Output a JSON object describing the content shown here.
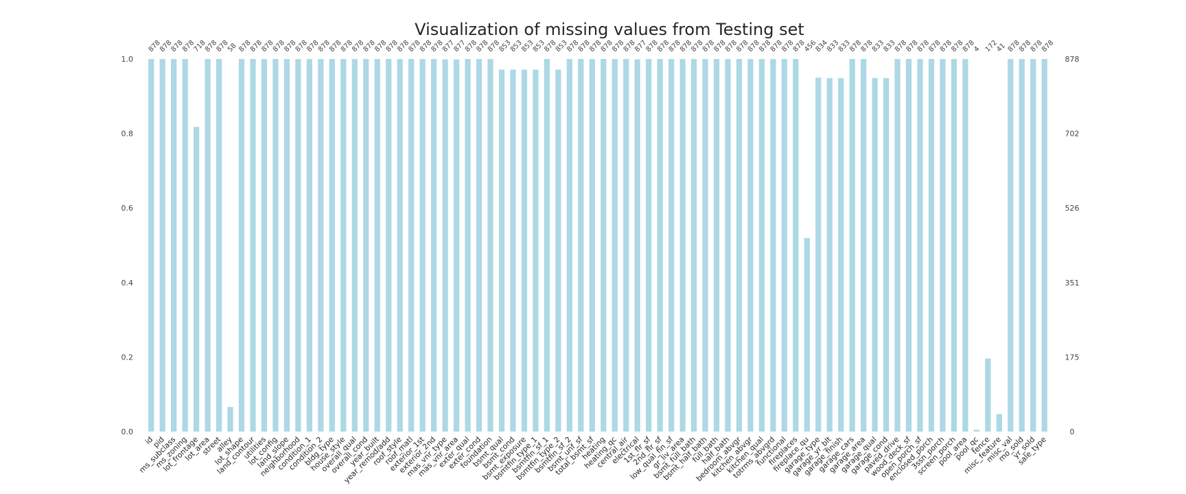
{
  "chart_data": {
    "type": "bar",
    "title": "Visualization of missing values from Testing set",
    "xlabel": "",
    "ylabel": "",
    "ylim": [
      0,
      1
    ],
    "y_ticks": [
      "0.0",
      "0.2",
      "0.4",
      "0.6",
      "0.8",
      "1.0"
    ],
    "y_tick_values": [
      0,
      0.2,
      0.4,
      0.6,
      0.8,
      1.0
    ],
    "y2_ticks": [
      "0",
      "175",
      "351",
      "526",
      "702",
      "878"
    ],
    "total_rows": 878,
    "bar_color": "#add8e6",
    "grid": true,
    "categories": [
      "id",
      "pid",
      "ms_subclass",
      "ms_zoning",
      "lot_frontage",
      "lot_area",
      "street",
      "alley",
      "lot_shape",
      "land_contour",
      "utilities",
      "lot_config",
      "land_slope",
      "neighborhood",
      "condition_1",
      "condition_2",
      "bldg_type",
      "house_style",
      "overall_qual",
      "overall_cond",
      "year_built",
      "year_remod/add",
      "roof_style",
      "roof_matl",
      "exterior_1st",
      "exterior_2nd",
      "mas_vnr_type",
      "mas_vnr_area",
      "exter_qual",
      "exter_cond",
      "foundation",
      "bsmt_qual",
      "bsmt_cond",
      "bsmt_exposure",
      "bsmtfin_type_1",
      "bsmtfin_sf_1",
      "bsmtfin_type_2",
      "bsmtfin_sf_2",
      "bsmt_unf_sf",
      "total_bsmt_sf",
      "heating",
      "heating_qc",
      "central_air",
      "electrical",
      "1st_flr_sf",
      "2nd_flr_sf",
      "low_qual_fin_sf",
      "gr_liv_area",
      "bsmt_full_bath",
      "bsmt_half_bath",
      "full_bath",
      "half_bath",
      "bedroom_abvgr",
      "kitchen_abvgr",
      "kitchen_qual",
      "totrms_abvgrd",
      "functional",
      "fireplaces",
      "fireplace_qu",
      "garage_type",
      "garage_yr_blt",
      "garage_finish",
      "garage_cars",
      "garage_area",
      "garage_qual",
      "garage_cond",
      "paved_drive",
      "wood_deck_sf",
      "open_porch_sf",
      "enclosed_porch",
      "3ssn_porch",
      "screen_porch",
      "pool_area",
      "pool_qc",
      "fence",
      "misc_feature",
      "misc_val",
      "mo_sold",
      "yr_sold",
      "sale_type"
    ],
    "values": [
      878,
      878,
      878,
      878,
      718,
      878,
      878,
      58,
      878,
      878,
      878,
      878,
      878,
      878,
      878,
      878,
      878,
      878,
      878,
      878,
      878,
      878,
      878,
      878,
      878,
      878,
      877,
      877,
      878,
      878,
      878,
      853,
      853,
      853,
      853,
      878,
      853,
      878,
      878,
      878,
      878,
      878,
      878,
      877,
      878,
      878,
      878,
      878,
      878,
      878,
      878,
      878,
      878,
      878,
      878,
      878,
      878,
      878,
      456,
      834,
      833,
      833,
      878,
      878,
      833,
      833,
      878,
      878,
      878,
      878,
      878,
      878,
      878,
      4,
      172,
      41,
      878,
      878,
      878,
      878
    ]
  }
}
